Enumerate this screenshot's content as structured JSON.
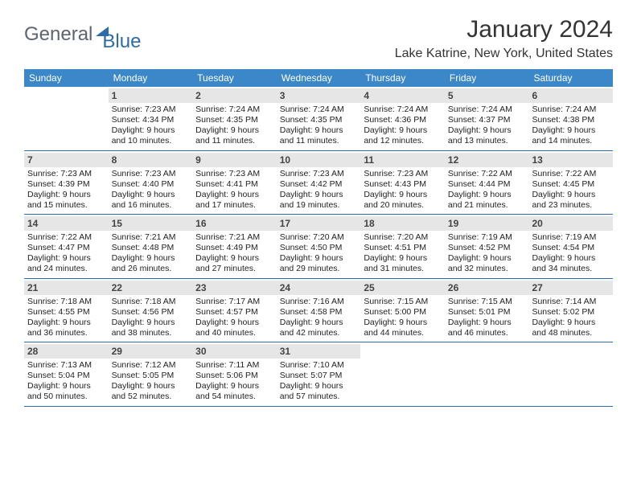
{
  "logo": {
    "text1": "General",
    "text2": "Blue"
  },
  "title": "January 2024",
  "location": "Lake Katrine, New York, United States",
  "colors": {
    "header_bg": "#3b87c8",
    "header_fg": "#ffffff",
    "rule": "#2c6ca8",
    "daynum_bg": "#e6e6e6"
  },
  "daysOfWeek": [
    "Sunday",
    "Monday",
    "Tuesday",
    "Wednesday",
    "Thursday",
    "Friday",
    "Saturday"
  ],
  "weeks": [
    [
      {
        "num": "",
        "lines": [
          "",
          "",
          "",
          ""
        ]
      },
      {
        "num": "1",
        "lines": [
          "Sunrise: 7:23 AM",
          "Sunset: 4:34 PM",
          "Daylight: 9 hours",
          "and 10 minutes."
        ]
      },
      {
        "num": "2",
        "lines": [
          "Sunrise: 7:24 AM",
          "Sunset: 4:35 PM",
          "Daylight: 9 hours",
          "and 11 minutes."
        ]
      },
      {
        "num": "3",
        "lines": [
          "Sunrise: 7:24 AM",
          "Sunset: 4:35 PM",
          "Daylight: 9 hours",
          "and 11 minutes."
        ]
      },
      {
        "num": "4",
        "lines": [
          "Sunrise: 7:24 AM",
          "Sunset: 4:36 PM",
          "Daylight: 9 hours",
          "and 12 minutes."
        ]
      },
      {
        "num": "5",
        "lines": [
          "Sunrise: 7:24 AM",
          "Sunset: 4:37 PM",
          "Daylight: 9 hours",
          "and 13 minutes."
        ]
      },
      {
        "num": "6",
        "lines": [
          "Sunrise: 7:24 AM",
          "Sunset: 4:38 PM",
          "Daylight: 9 hours",
          "and 14 minutes."
        ]
      }
    ],
    [
      {
        "num": "7",
        "lines": [
          "Sunrise: 7:23 AM",
          "Sunset: 4:39 PM",
          "Daylight: 9 hours",
          "and 15 minutes."
        ]
      },
      {
        "num": "8",
        "lines": [
          "Sunrise: 7:23 AM",
          "Sunset: 4:40 PM",
          "Daylight: 9 hours",
          "and 16 minutes."
        ]
      },
      {
        "num": "9",
        "lines": [
          "Sunrise: 7:23 AM",
          "Sunset: 4:41 PM",
          "Daylight: 9 hours",
          "and 17 minutes."
        ]
      },
      {
        "num": "10",
        "lines": [
          "Sunrise: 7:23 AM",
          "Sunset: 4:42 PM",
          "Daylight: 9 hours",
          "and 19 minutes."
        ]
      },
      {
        "num": "11",
        "lines": [
          "Sunrise: 7:23 AM",
          "Sunset: 4:43 PM",
          "Daylight: 9 hours",
          "and 20 minutes."
        ]
      },
      {
        "num": "12",
        "lines": [
          "Sunrise: 7:22 AM",
          "Sunset: 4:44 PM",
          "Daylight: 9 hours",
          "and 21 minutes."
        ]
      },
      {
        "num": "13",
        "lines": [
          "Sunrise: 7:22 AM",
          "Sunset: 4:45 PM",
          "Daylight: 9 hours",
          "and 23 minutes."
        ]
      }
    ],
    [
      {
        "num": "14",
        "lines": [
          "Sunrise: 7:22 AM",
          "Sunset: 4:47 PM",
          "Daylight: 9 hours",
          "and 24 minutes."
        ]
      },
      {
        "num": "15",
        "lines": [
          "Sunrise: 7:21 AM",
          "Sunset: 4:48 PM",
          "Daylight: 9 hours",
          "and 26 minutes."
        ]
      },
      {
        "num": "16",
        "lines": [
          "Sunrise: 7:21 AM",
          "Sunset: 4:49 PM",
          "Daylight: 9 hours",
          "and 27 minutes."
        ]
      },
      {
        "num": "17",
        "lines": [
          "Sunrise: 7:20 AM",
          "Sunset: 4:50 PM",
          "Daylight: 9 hours",
          "and 29 minutes."
        ]
      },
      {
        "num": "18",
        "lines": [
          "Sunrise: 7:20 AM",
          "Sunset: 4:51 PM",
          "Daylight: 9 hours",
          "and 31 minutes."
        ]
      },
      {
        "num": "19",
        "lines": [
          "Sunrise: 7:19 AM",
          "Sunset: 4:52 PM",
          "Daylight: 9 hours",
          "and 32 minutes."
        ]
      },
      {
        "num": "20",
        "lines": [
          "Sunrise: 7:19 AM",
          "Sunset: 4:54 PM",
          "Daylight: 9 hours",
          "and 34 minutes."
        ]
      }
    ],
    [
      {
        "num": "21",
        "lines": [
          "Sunrise: 7:18 AM",
          "Sunset: 4:55 PM",
          "Daylight: 9 hours",
          "and 36 minutes."
        ]
      },
      {
        "num": "22",
        "lines": [
          "Sunrise: 7:18 AM",
          "Sunset: 4:56 PM",
          "Daylight: 9 hours",
          "and 38 minutes."
        ]
      },
      {
        "num": "23",
        "lines": [
          "Sunrise: 7:17 AM",
          "Sunset: 4:57 PM",
          "Daylight: 9 hours",
          "and 40 minutes."
        ]
      },
      {
        "num": "24",
        "lines": [
          "Sunrise: 7:16 AM",
          "Sunset: 4:58 PM",
          "Daylight: 9 hours",
          "and 42 minutes."
        ]
      },
      {
        "num": "25",
        "lines": [
          "Sunrise: 7:15 AM",
          "Sunset: 5:00 PM",
          "Daylight: 9 hours",
          "and 44 minutes."
        ]
      },
      {
        "num": "26",
        "lines": [
          "Sunrise: 7:15 AM",
          "Sunset: 5:01 PM",
          "Daylight: 9 hours",
          "and 46 minutes."
        ]
      },
      {
        "num": "27",
        "lines": [
          "Sunrise: 7:14 AM",
          "Sunset: 5:02 PM",
          "Daylight: 9 hours",
          "and 48 minutes."
        ]
      }
    ],
    [
      {
        "num": "28",
        "lines": [
          "Sunrise: 7:13 AM",
          "Sunset: 5:04 PM",
          "Daylight: 9 hours",
          "and 50 minutes."
        ]
      },
      {
        "num": "29",
        "lines": [
          "Sunrise: 7:12 AM",
          "Sunset: 5:05 PM",
          "Daylight: 9 hours",
          "and 52 minutes."
        ]
      },
      {
        "num": "30",
        "lines": [
          "Sunrise: 7:11 AM",
          "Sunset: 5:06 PM",
          "Daylight: 9 hours",
          "and 54 minutes."
        ]
      },
      {
        "num": "31",
        "lines": [
          "Sunrise: 7:10 AM",
          "Sunset: 5:07 PM",
          "Daylight: 9 hours",
          "and 57 minutes."
        ]
      },
      {
        "num": "",
        "lines": [
          "",
          "",
          "",
          ""
        ]
      },
      {
        "num": "",
        "lines": [
          "",
          "",
          "",
          ""
        ]
      },
      {
        "num": "",
        "lines": [
          "",
          "",
          "",
          ""
        ]
      }
    ]
  ]
}
